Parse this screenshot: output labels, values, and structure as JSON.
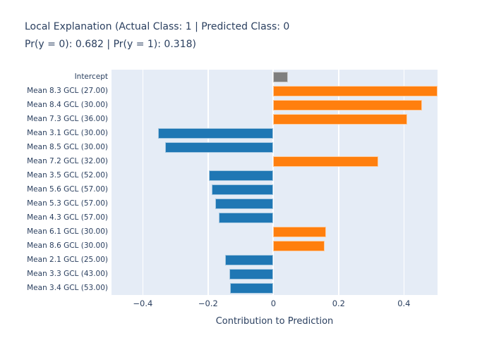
{
  "title": {
    "line1": "Local Explanation (Actual Class: 1 | Predicted Class: 0",
    "line2": "Pr(y = 0): 0.682 | Pr(y = 1): 0.318)"
  },
  "chart_data": {
    "type": "bar",
    "orientation": "horizontal",
    "title": "Local Explanation (Actual Class: 1 | Predicted Class: 0 Pr(y = 0): 0.682 | Pr(y = 1): 0.318)",
    "xlabel": "Contribution to Prediction",
    "categories": [
      "Intercept",
      "Mean 8.3 GCL (27.00)",
      "Mean 8.4 GCL (30.00)",
      "Mean 7.3 GCL (36.00)",
      "Mean 3.1 GCL (30.00)",
      "Mean 8.5 GCL (30.00)",
      "Mean 7.2 GCL (32.00)",
      "Mean 3.5 GCL (52.00)",
      "Mean 5.6 GCL (57.00)",
      "Mean 5.3 GCL (57.00)",
      "Mean 4.3 GCL (57.00)",
      "Mean 6.1 GCL (30.00)",
      "Mean 8.6 GCL (30.00)",
      "Mean 2.1 GCL (25.00)",
      "Mean 3.3 GCL (43.00)",
      "Mean 3.4 GCL (53.00)"
    ],
    "values": [
      0.045,
      0.503,
      0.455,
      0.41,
      -0.353,
      -0.331,
      0.321,
      -0.198,
      -0.189,
      -0.178,
      -0.168,
      0.162,
      0.157,
      -0.148,
      -0.135,
      -0.133
    ],
    "bar_colors": [
      "#7f7f7f",
      "#ff7f0e",
      "#ff7f0e",
      "#ff7f0e",
      "#1f77b4",
      "#1f77b4",
      "#ff7f0e",
      "#1f77b4",
      "#1f77b4",
      "#1f77b4",
      "#1f77b4",
      "#ff7f0e",
      "#ff7f0e",
      "#1f77b4",
      "#1f77b4",
      "#1f77b4"
    ],
    "xticks": [
      -0.4,
      -0.2,
      0,
      0.2,
      0.4
    ],
    "xtick_labels": [
      "−0.4",
      "−0.2",
      "0",
      "0.2",
      "0.4"
    ],
    "xlim": [
      -0.496,
      0.503
    ],
    "grid": true,
    "legend": false,
    "colors": {
      "positive": "#ff7f0e",
      "negative": "#1f77b4",
      "intercept": "#7f7f7f",
      "plot_bg": "#e5ecf6",
      "grid": "#ffffff",
      "text": "#2a3f5f"
    }
  }
}
